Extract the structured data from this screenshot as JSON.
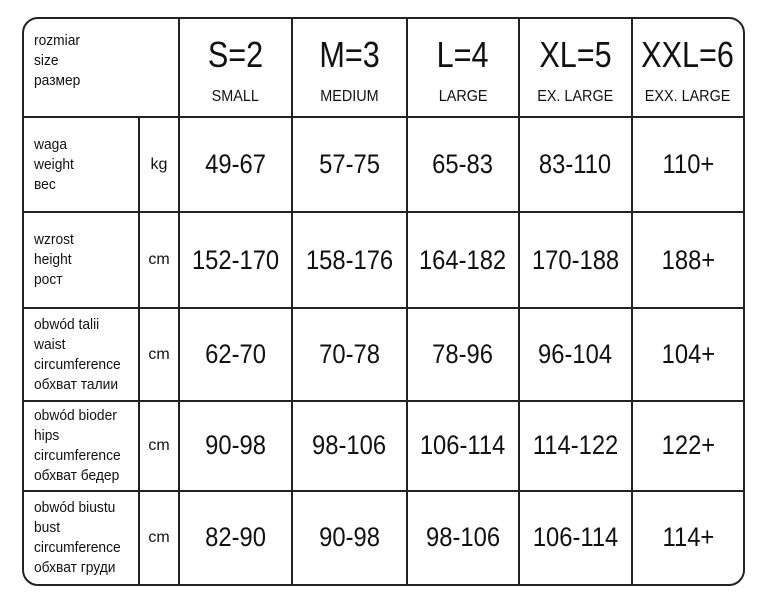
{
  "header": {
    "label": [
      "rozmiar",
      "size",
      "размер"
    ],
    "sizes": [
      {
        "code": "S=2",
        "name": "SMALL"
      },
      {
        "code": "M=3",
        "name": "MEDIUM"
      },
      {
        "code": "L=4",
        "name": "LARGE"
      },
      {
        "code": "XL=5",
        "name": "EX. LARGE"
      },
      {
        "code": "XXL=6",
        "name": "EXX. LARGE"
      }
    ]
  },
  "rows": [
    {
      "label": [
        "waga",
        "weight",
        "вес"
      ],
      "unit": "kg",
      "values": [
        "49-67",
        "57-75",
        "65-83",
        "83-110",
        "110+"
      ]
    },
    {
      "label": [
        "wzrost",
        "height",
        "рост"
      ],
      "unit": "cm",
      "values": [
        "152-170",
        "158-176",
        "164-182",
        "170-188",
        "188+"
      ]
    },
    {
      "label": [
        "obwód talii",
        "waist",
        "circumference",
        "обхват талии"
      ],
      "unit": "cm",
      "values": [
        "62-70",
        "70-78",
        "78-96",
        "96-104",
        "104+"
      ]
    },
    {
      "label": [
        "obwód bioder",
        "hips",
        "circumference",
        "обхват бедер"
      ],
      "unit": "cm",
      "values": [
        "90-98",
        "98-106",
        "106-114",
        "114-122",
        "122+"
      ]
    },
    {
      "label": [
        "obwód biustu",
        "bust",
        "circumference",
        "обхват груди"
      ],
      "unit": "cm",
      "values": [
        "82-90",
        "90-98",
        "98-106",
        "106-114",
        "114+"
      ]
    }
  ]
}
